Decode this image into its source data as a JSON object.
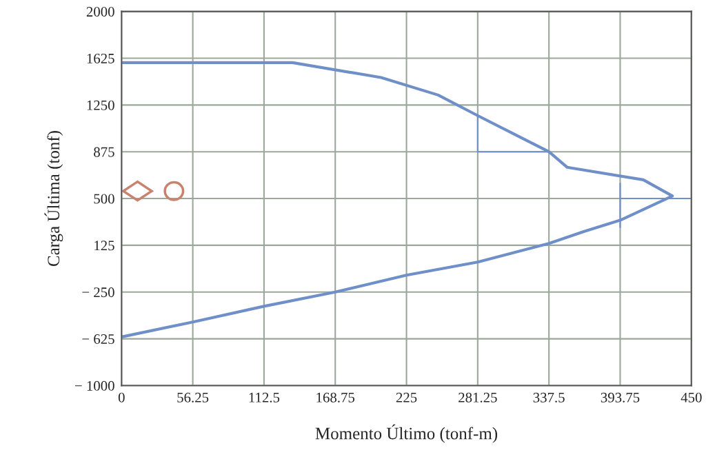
{
  "chart_data": {
    "type": "line",
    "xlabel": "Momento Último (tonf-m)",
    "ylabel": "Carga Última (tonf)",
    "xlim": [
      0,
      450
    ],
    "xticks": [
      0,
      56.25,
      112.5,
      168.75,
      225,
      281.25,
      337.5,
      393.75,
      450
    ],
    "ylim": [
      -1000,
      2000
    ],
    "yticks": [
      {
        "value": -1000,
        "label": "− 1000"
      },
      {
        "value": -625,
        "label": "− 625"
      },
      {
        "value": -250,
        "label": "− 250"
      },
      125,
      500,
      875,
      1250,
      1625,
      2000
    ],
    "grid": true,
    "marker": "none",
    "line_style": "solid",
    "series": [
      {
        "color": "#6f8fc8",
        "x": [
          0,
          135,
          205,
          250,
          281.25,
          337.5,
          352,
          412,
          435,
          393.75,
          365,
          337.5,
          281.25,
          225,
          168.75,
          112.5,
          56.25,
          0
        ],
        "values": [
          1590,
          1590,
          1470,
          1330,
          1165,
          875,
          750,
          650,
          520,
          326,
          235,
          140,
          -10,
          -115,
          -250,
          -364,
          -490,
          -610
        ]
      },
      {
        "color": "#6f8fc8",
        "x": [
          281.25,
          281.25,
          337.5
        ],
        "values": [
          1165,
          875,
          875
        ]
      },
      {
        "color": "#6f8fc8",
        "x": [
          393.75,
          393.75,
          393.75,
          450
        ],
        "values": [
          622,
          268,
          500,
          500
        ]
      }
    ]
  }
}
